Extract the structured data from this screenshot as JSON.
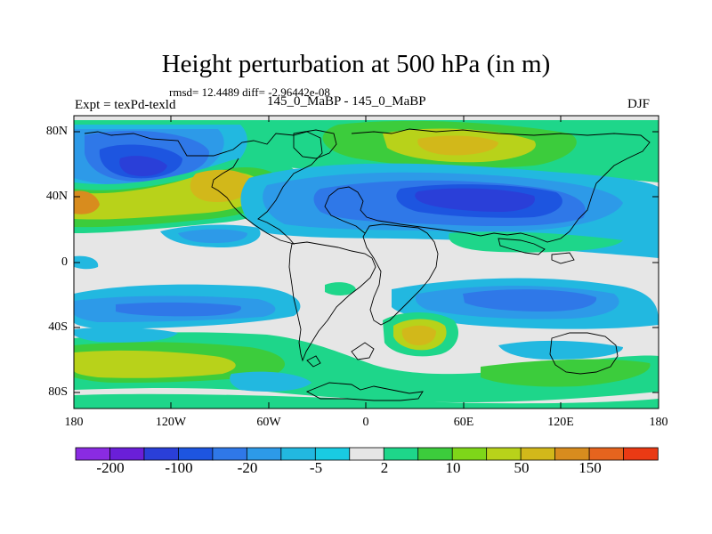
{
  "title": "Height perturbation at 500 hPa (in m)",
  "stats_line": "rmsd= 12.4489 diff= -2.96442e-08",
  "left_label": "Expt = texPd-texld",
  "center_label": "145_0_MaBP - 145_0_MaBP",
  "right_label": "DJF",
  "y_ticks": [
    "80N",
    "40N",
    "0",
    "40S",
    "80S"
  ],
  "x_ticks": [
    "180",
    "120W",
    "60W",
    "0",
    "60E",
    "120E",
    "180"
  ],
  "colorbar": {
    "labels": [
      "-200",
      "-100",
      "-20",
      "-5",
      "2",
      "10",
      "50",
      "150"
    ],
    "colors": [
      "#8a2be2",
      "#6a1fd8",
      "#2a3fd8",
      "#1d55e0",
      "#2f78e8",
      "#2d9ae8",
      "#22b8e0",
      "#19cbe2",
      "#e6e6e6",
      "#1ed68a",
      "#3ccc3c",
      "#7ed619",
      "#b8d21a",
      "#d2b81a",
      "#d88c1e",
      "#e6641e",
      "#ea3a14"
    ]
  }
}
